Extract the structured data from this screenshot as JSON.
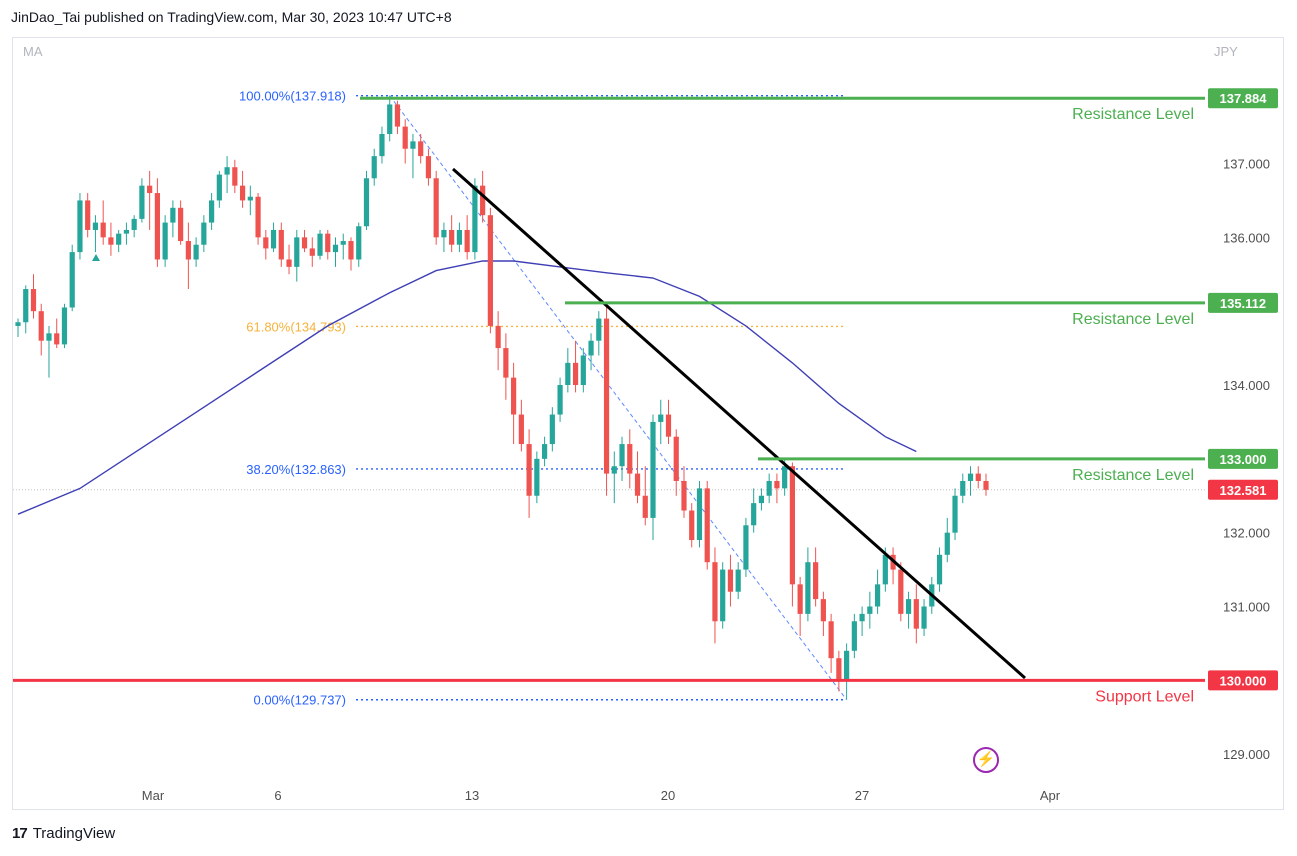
{
  "header": {
    "publisher_line": "JinDao_Tai published on TradingView.com, Mar 30, 2023 10:47 UTC+8"
  },
  "indicator_label": "MA",
  "currency_label": "JPY",
  "footer": {
    "brand": "TradingView"
  },
  "chart_data": {
    "type": "candlestick",
    "symbol_currency": "JPY",
    "x_ticks": [
      "Mar",
      "6",
      "13",
      "20",
      "27",
      "Apr"
    ],
    "y_ticks": [
      129.0,
      131.0,
      132.0,
      134.0,
      136.0,
      137.0
    ],
    "ylim": [
      128.65,
      138.7
    ],
    "current_price": 132.581,
    "levels": [
      {
        "name": "Resistance Level",
        "price": 137.884,
        "price_label": "137.884",
        "color": "#4caf50"
      },
      {
        "name": "Resistance Level",
        "price": 135.112,
        "price_label": "135.112",
        "color": "#4caf50"
      },
      {
        "name": "Resistance Level",
        "price": 133.0,
        "price_label": "133.000",
        "color": "#4caf50"
      },
      {
        "name": "Support Level",
        "price": 130.0,
        "price_label": "130.000",
        "color": "#f23645"
      }
    ],
    "current_price_label": "132.581",
    "fibonacci": [
      {
        "label": "100.00%(137.918)",
        "price": 137.918,
        "color": "#2962ff"
      },
      {
        "label": "61.80%(134.793)",
        "price": 134.793,
        "color": "#f7b23b"
      },
      {
        "label": "38.20%(132.863)",
        "price": 132.863,
        "color": "#2962ff"
      },
      {
        "label": "0.00%(129.737)",
        "price": 129.737,
        "color": "#2962ff"
      }
    ],
    "colors": {
      "up": "#26a69a",
      "down": "#ef5350",
      "ma": "#3f3fb5",
      "trendline": "#000000"
    },
    "moving_average": [
      [
        0,
        132.25
      ],
      [
        8,
        132.6
      ],
      [
        16,
        133.15
      ],
      [
        24,
        133.7
      ],
      [
        32,
        134.25
      ],
      [
        40,
        134.8
      ],
      [
        48,
        135.25
      ],
      [
        54,
        135.55
      ],
      [
        60,
        135.68
      ],
      [
        64,
        135.68
      ],
      [
        70,
        135.6
      ],
      [
        76,
        135.52
      ],
      [
        82,
        135.45
      ],
      [
        88,
        135.2
      ],
      [
        94,
        134.8
      ],
      [
        100,
        134.3
      ],
      [
        106,
        133.75
      ],
      [
        112,
        133.3
      ],
      [
        116,
        133.1
      ]
    ],
    "candles": [
      [
        0,
        134.8,
        134.9,
        134.65,
        134.85
      ],
      [
        1,
        134.85,
        135.35,
        134.7,
        135.3
      ],
      [
        2,
        135.3,
        135.5,
        134.9,
        135.0
      ],
      [
        3,
        135.0,
        135.1,
        134.4,
        134.6
      ],
      [
        4,
        134.6,
        134.8,
        134.1,
        134.7
      ],
      [
        5,
        134.7,
        134.9,
        134.5,
        134.55
      ],
      [
        6,
        134.55,
        135.1,
        134.5,
        135.05
      ],
      [
        7,
        135.05,
        135.9,
        135.0,
        135.8
      ],
      [
        8,
        135.8,
        136.6,
        135.7,
        136.5
      ],
      [
        9,
        136.5,
        136.6,
        136.0,
        136.1
      ],
      [
        10,
        136.1,
        136.3,
        135.8,
        136.2
      ],
      [
        11,
        136.2,
        136.5,
        135.9,
        136.0
      ],
      [
        12,
        136.0,
        136.2,
        135.75,
        135.9
      ],
      [
        13,
        135.9,
        136.1,
        135.8,
        136.05
      ],
      [
        14,
        136.05,
        136.2,
        135.9,
        136.1
      ],
      [
        15,
        136.1,
        136.3,
        136.0,
        136.25
      ],
      [
        16,
        136.25,
        136.8,
        136.2,
        136.7
      ],
      [
        17,
        136.7,
        136.9,
        136.1,
        136.6
      ],
      [
        18,
        136.6,
        136.8,
        135.6,
        135.7
      ],
      [
        19,
        135.7,
        136.3,
        135.6,
        136.2
      ],
      [
        20,
        136.2,
        136.5,
        136.0,
        136.4
      ],
      [
        21,
        136.4,
        136.5,
        135.9,
        135.95
      ],
      [
        22,
        135.95,
        136.2,
        135.3,
        135.7
      ],
      [
        23,
        135.7,
        136.0,
        135.6,
        135.9
      ],
      [
        24,
        135.9,
        136.3,
        135.8,
        136.2
      ],
      [
        25,
        136.2,
        136.6,
        136.1,
        136.5
      ],
      [
        26,
        136.5,
        136.9,
        136.4,
        136.85
      ],
      [
        27,
        136.85,
        137.1,
        136.6,
        136.95
      ],
      [
        28,
        136.95,
        137.05,
        136.6,
        136.7
      ],
      [
        29,
        136.7,
        136.9,
        136.4,
        136.5
      ],
      [
        30,
        136.5,
        136.7,
        136.3,
        136.55
      ],
      [
        31,
        136.55,
        136.6,
        135.9,
        136.0
      ],
      [
        32,
        136.0,
        136.1,
        135.7,
        135.85
      ],
      [
        33,
        135.85,
        136.2,
        135.8,
        136.1
      ],
      [
        34,
        136.1,
        136.2,
        135.6,
        135.7
      ],
      [
        35,
        135.7,
        135.9,
        135.5,
        135.6
      ],
      [
        36,
        135.6,
        136.1,
        135.4,
        136.0
      ],
      [
        37,
        136.0,
        136.1,
        135.8,
        135.85
      ],
      [
        38,
        135.85,
        136.0,
        135.6,
        135.75
      ],
      [
        39,
        135.75,
        136.1,
        135.7,
        136.05
      ],
      [
        40,
        136.05,
        136.1,
        135.7,
        135.8
      ],
      [
        41,
        135.8,
        136.0,
        135.6,
        135.9
      ],
      [
        42,
        135.9,
        136.05,
        135.7,
        135.95
      ],
      [
        43,
        135.95,
        136.0,
        135.55,
        135.7
      ],
      [
        44,
        135.7,
        136.2,
        135.6,
        136.15
      ],
      [
        45,
        136.15,
        136.9,
        136.1,
        136.8
      ],
      [
        46,
        136.8,
        137.2,
        136.7,
        137.1
      ],
      [
        47,
        137.1,
        137.5,
        137.0,
        137.4
      ],
      [
        48,
        137.4,
        137.92,
        137.3,
        137.8
      ],
      [
        49,
        137.8,
        137.85,
        137.4,
        137.5
      ],
      [
        50,
        137.5,
        137.6,
        137.0,
        137.2
      ],
      [
        51,
        137.2,
        137.4,
        136.8,
        137.3
      ],
      [
        52,
        137.3,
        137.4,
        137.0,
        137.1
      ],
      [
        53,
        137.1,
        137.2,
        136.7,
        136.8
      ],
      [
        54,
        136.8,
        136.9,
        135.9,
        136.0
      ],
      [
        55,
        136.0,
        136.2,
        135.8,
        136.1
      ],
      [
        56,
        136.1,
        136.3,
        135.8,
        135.9
      ],
      [
        57,
        135.9,
        136.2,
        135.8,
        136.1
      ],
      [
        58,
        136.1,
        136.3,
        135.7,
        135.8
      ],
      [
        59,
        135.8,
        136.8,
        135.7,
        136.7
      ],
      [
        60,
        136.7,
        136.9,
        136.2,
        136.3
      ],
      [
        61,
        136.3,
        136.4,
        134.7,
        134.8
      ],
      [
        62,
        134.8,
        135.0,
        134.2,
        134.5
      ],
      [
        63,
        134.5,
        134.7,
        133.8,
        134.1
      ],
      [
        64,
        134.1,
        134.3,
        133.2,
        133.6
      ],
      [
        65,
        133.6,
        133.8,
        133.1,
        133.2
      ],
      [
        66,
        133.2,
        133.4,
        132.2,
        132.5
      ],
      [
        67,
        132.5,
        133.1,
        132.4,
        133.0
      ],
      [
        68,
        133.0,
        133.3,
        132.9,
        133.2
      ],
      [
        69,
        133.2,
        133.7,
        133.1,
        133.6
      ],
      [
        70,
        133.6,
        134.1,
        133.5,
        134.0
      ],
      [
        71,
        134.0,
        134.5,
        133.9,
        134.3
      ],
      [
        72,
        134.3,
        134.6,
        133.9,
        134.0
      ],
      [
        73,
        134.0,
        134.5,
        133.9,
        134.4
      ],
      [
        74,
        134.4,
        134.7,
        134.2,
        134.6
      ],
      [
        75,
        134.6,
        135.0,
        134.4,
        134.9
      ],
      [
        76,
        134.9,
        135.1,
        132.5,
        132.8
      ],
      [
        77,
        132.8,
        133.1,
        132.4,
        132.9
      ],
      [
        78,
        132.9,
        133.3,
        132.7,
        133.2
      ],
      [
        79,
        133.2,
        133.4,
        132.6,
        132.8
      ],
      [
        80,
        132.8,
        133.1,
        132.4,
        132.5
      ],
      [
        81,
        132.5,
        132.9,
        132.1,
        132.2
      ],
      [
        82,
        132.2,
        133.6,
        131.9,
        133.5
      ],
      [
        83,
        133.5,
        133.8,
        133.2,
        133.6
      ],
      [
        84,
        133.6,
        133.8,
        133.2,
        133.3
      ],
      [
        85,
        133.3,
        133.4,
        132.5,
        132.7
      ],
      [
        86,
        132.7,
        132.9,
        132.2,
        132.3
      ],
      [
        87,
        132.3,
        132.4,
        131.8,
        131.9
      ],
      [
        88,
        131.9,
        132.7,
        131.8,
        132.6
      ],
      [
        89,
        132.6,
        132.7,
        131.5,
        131.6
      ],
      [
        90,
        131.6,
        131.8,
        130.5,
        130.8
      ],
      [
        91,
        130.8,
        131.6,
        130.7,
        131.5
      ],
      [
        92,
        131.5,
        131.7,
        131.0,
        131.2
      ],
      [
        93,
        131.2,
        131.6,
        131.1,
        131.5
      ],
      [
        94,
        131.5,
        132.2,
        131.4,
        132.1
      ],
      [
        95,
        132.1,
        132.6,
        132.0,
        132.4
      ],
      [
        96,
        132.4,
        132.6,
        132.3,
        132.5
      ],
      [
        97,
        132.5,
        132.8,
        132.4,
        132.7
      ],
      [
        98,
        132.7,
        132.8,
        132.4,
        132.6
      ],
      [
        99,
        132.6,
        133.0,
        132.5,
        132.9
      ],
      [
        100,
        132.9,
        132.95,
        131.0,
        131.3
      ],
      [
        101,
        131.3,
        131.4,
        130.6,
        130.9
      ],
      [
        102,
        130.9,
        131.8,
        130.8,
        131.6
      ],
      [
        103,
        131.6,
        131.8,
        131.0,
        131.1
      ],
      [
        104,
        131.1,
        131.2,
        130.6,
        130.8
      ],
      [
        105,
        130.8,
        130.9,
        130.1,
        130.3
      ],
      [
        106,
        130.3,
        130.4,
        129.85,
        130.0
      ],
      [
        107,
        130.0,
        130.5,
        129.74,
        130.4
      ],
      [
        108,
        130.4,
        130.9,
        130.3,
        130.8
      ],
      [
        109,
        130.8,
        131.0,
        130.6,
        130.9
      ],
      [
        110,
        130.9,
        131.2,
        130.7,
        131.0
      ],
      [
        111,
        131.0,
        131.5,
        130.9,
        131.3
      ],
      [
        112,
        131.3,
        131.8,
        131.2,
        131.7
      ],
      [
        113,
        131.7,
        131.8,
        131.3,
        131.5
      ],
      [
        114,
        131.5,
        131.6,
        130.8,
        130.9
      ],
      [
        115,
        130.9,
        131.2,
        130.7,
        131.1
      ],
      [
        116,
        131.1,
        131.3,
        130.5,
        130.7
      ],
      [
        117,
        130.7,
        131.1,
        130.6,
        131.0
      ],
      [
        118,
        131.0,
        131.4,
        130.9,
        131.3
      ],
      [
        119,
        131.3,
        131.8,
        131.2,
        131.7
      ],
      [
        120,
        131.7,
        132.2,
        131.6,
        132.0
      ],
      [
        121,
        132.0,
        132.6,
        131.9,
        132.5
      ],
      [
        122,
        132.5,
        132.8,
        132.4,
        132.7
      ],
      [
        123,
        132.7,
        132.9,
        132.5,
        132.8
      ],
      [
        124,
        132.8,
        132.9,
        132.6,
        132.7
      ],
      [
        125,
        132.7,
        132.8,
        132.5,
        132.58
      ]
    ]
  }
}
